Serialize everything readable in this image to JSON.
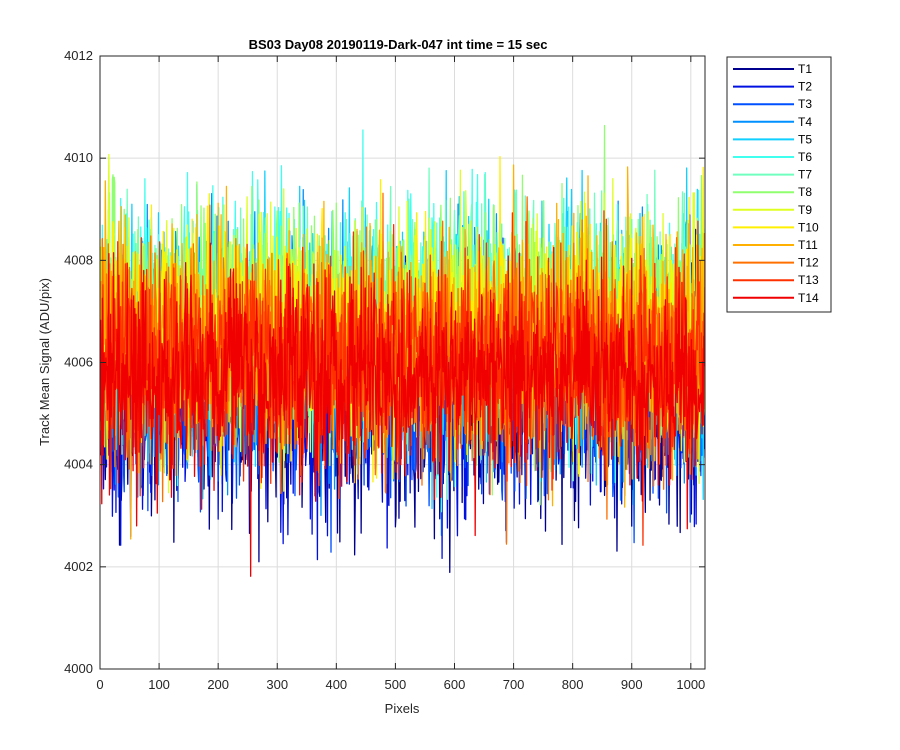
{
  "chart_data": {
    "type": "line",
    "title": "BS03 Day08 20190119-Dark-047 int time = 15 sec",
    "xlabel": "Pixels",
    "ylabel": "Track Mean Signal (ADU/pix)",
    "xlim": [
      0,
      1024
    ],
    "ylim": [
      4000,
      4012
    ],
    "xticks": [
      0,
      100,
      200,
      300,
      400,
      500,
      600,
      700,
      800,
      900,
      1000
    ],
    "yticks": [
      4000,
      4002,
      4004,
      4006,
      4008,
      4010,
      4012
    ],
    "grid": true,
    "legend_placement": "outside-top-right",
    "series": [
      {
        "name": "T1",
        "color": "#00008F",
        "mean": 4005.2,
        "noise": 1.1,
        "seed": 11
      },
      {
        "name": "T2",
        "color": "#0010E0",
        "mean": 4005.4,
        "noise": 1.1,
        "seed": 23
      },
      {
        "name": "T3",
        "color": "#0050FF",
        "mean": 4005.7,
        "noise": 1.1,
        "seed": 37
      },
      {
        "name": "T4",
        "color": "#0090FF",
        "mean": 4006.3,
        "noise": 1.15,
        "seed": 41
      },
      {
        "name": "T5",
        "color": "#10D0FF",
        "mean": 4006.6,
        "noise": 1.15,
        "seed": 53
      },
      {
        "name": "T6",
        "color": "#40FFEF",
        "mean": 4006.8,
        "noise": 1.1,
        "seed": 67
      },
      {
        "name": "T7",
        "color": "#70FFBF",
        "mean": 4006.8,
        "noise": 1.1,
        "seed": 71
      },
      {
        "name": "T8",
        "color": "#90FF6F",
        "mean": 4006.9,
        "noise": 1.1,
        "seed": 83
      },
      {
        "name": "T9",
        "color": "#DFFF20",
        "mean": 4006.7,
        "noise": 1.1,
        "seed": 97
      },
      {
        "name": "T10",
        "color": "#FFEF00",
        "mean": 4006.5,
        "noise": 1.1,
        "seed": 101
      },
      {
        "name": "T11",
        "color": "#FFB000",
        "mean": 4006.4,
        "noise": 1.1,
        "seed": 113
      },
      {
        "name": "T12",
        "color": "#FF7000",
        "mean": 4006.1,
        "noise": 1.05,
        "seed": 127
      },
      {
        "name": "T13",
        "color": "#FF3000",
        "mean": 4006.0,
        "noise": 1.0,
        "seed": 131
      },
      {
        "name": "T14",
        "color": "#F00000",
        "mean": 4005.7,
        "noise": 0.95,
        "seed": 139
      }
    ]
  }
}
